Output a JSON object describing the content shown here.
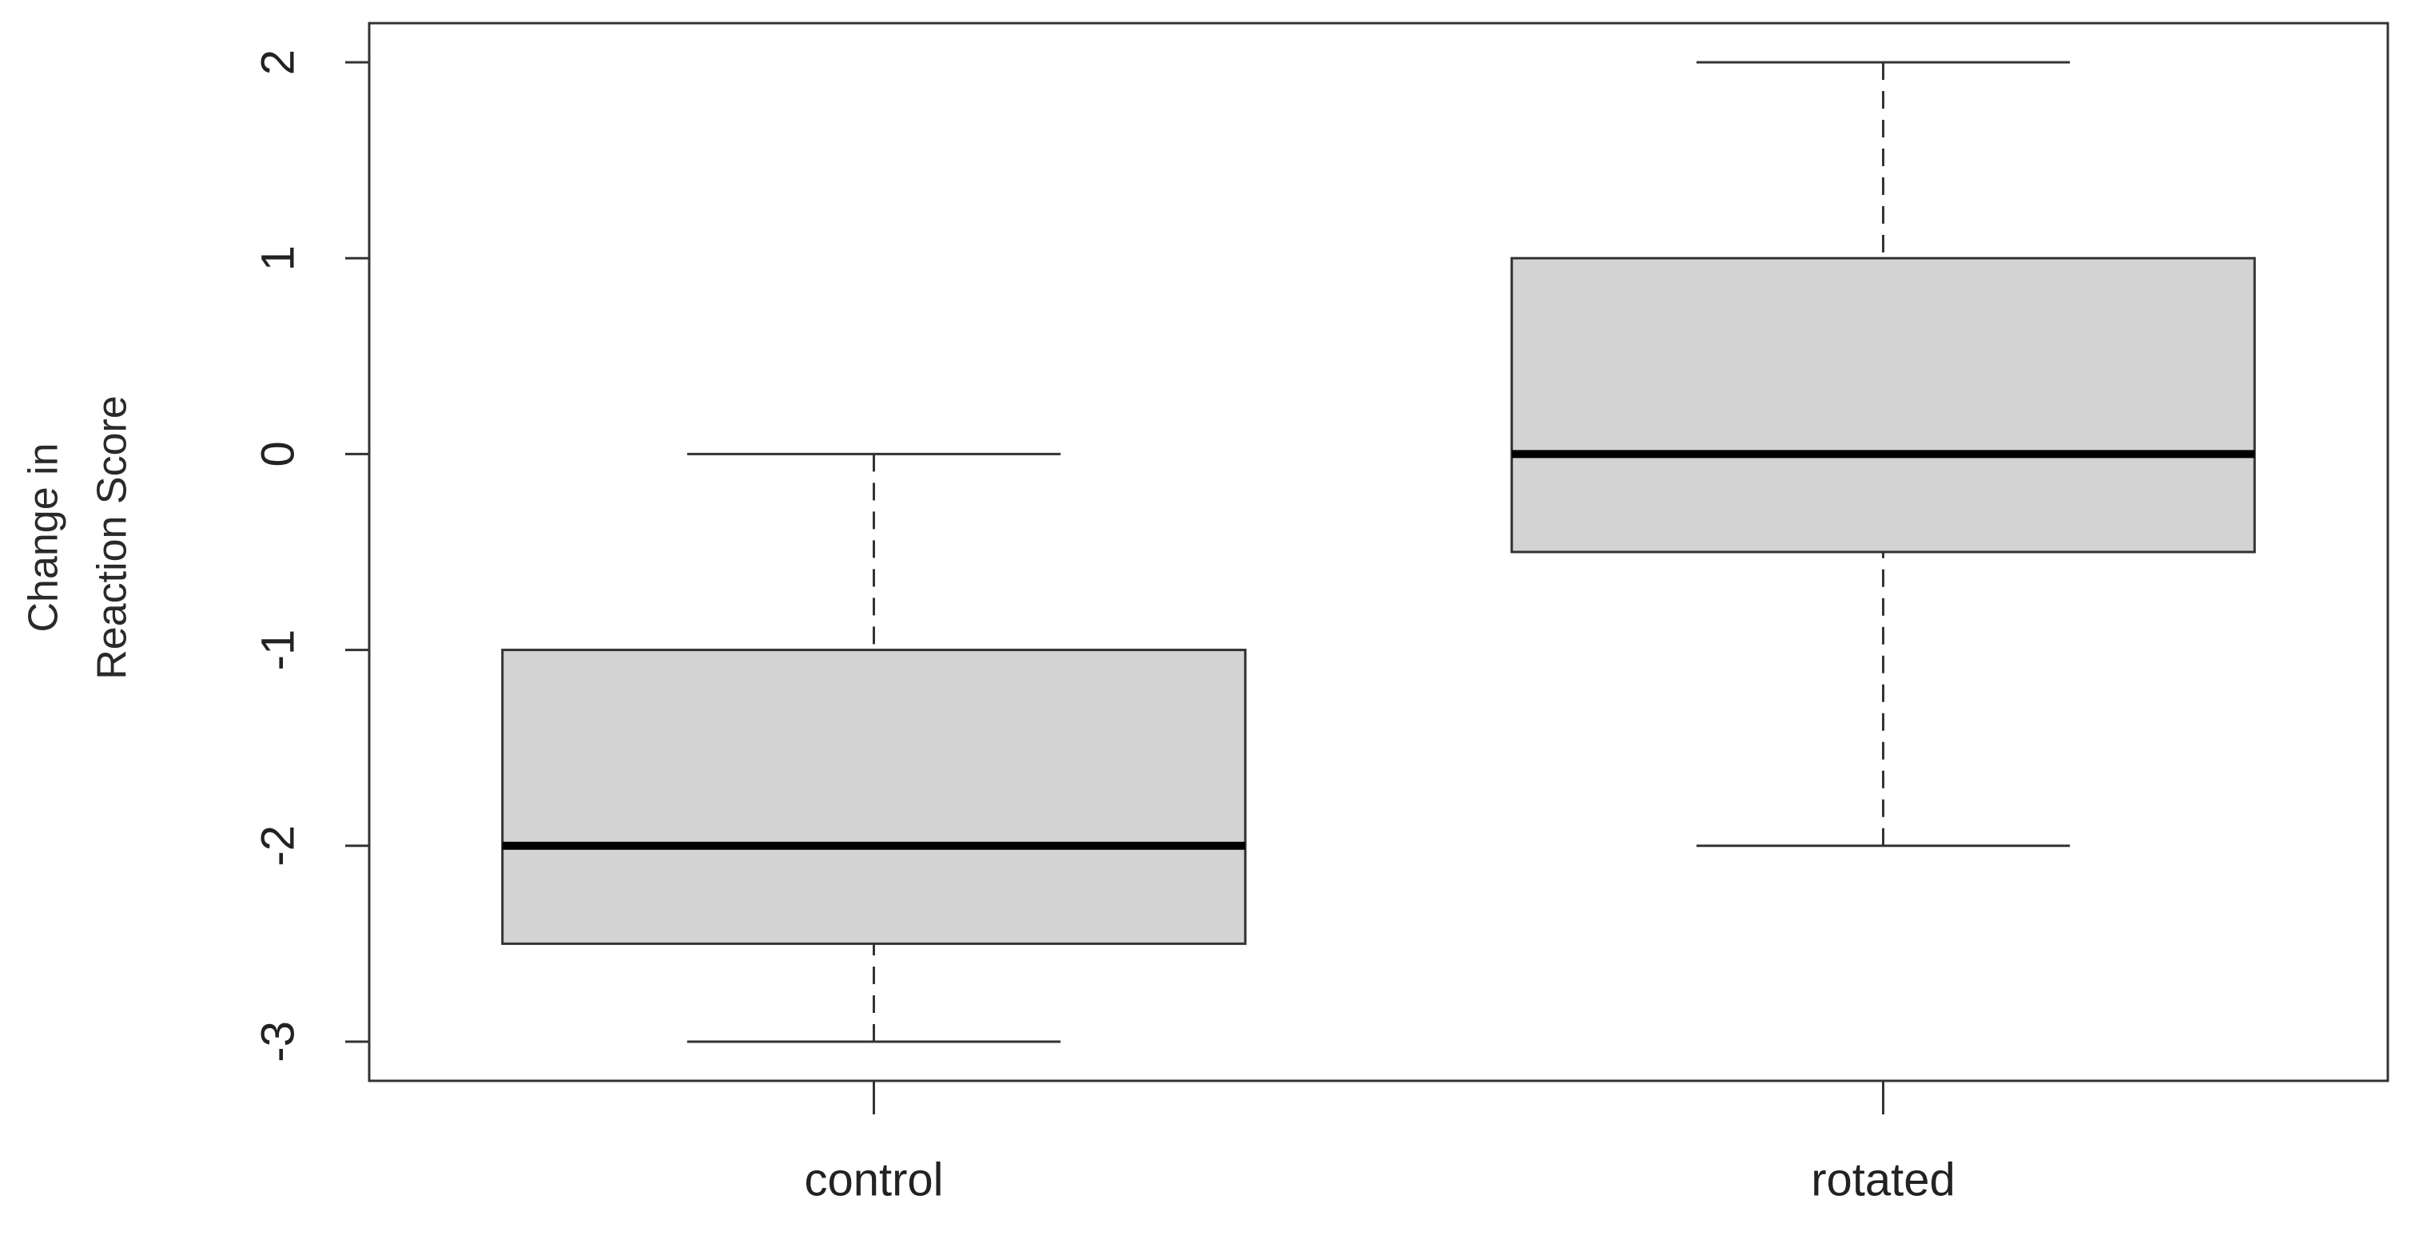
{
  "chart_data": {
    "type": "boxplot",
    "y_label": [
      "Change in",
      "Reaction Score"
    ],
    "categories": [
      "control",
      "rotated"
    ],
    "boxes": [
      {
        "min": -3,
        "q1": -2.5,
        "median": -2,
        "q3": -1,
        "max": 0
      },
      {
        "min": -2,
        "q1": -0.5,
        "median": 0,
        "q3": 1,
        "max": 2
      }
    ],
    "color": "#d3d3d3",
    "ylim": [
      -3.2,
      2.2
    ],
    "yticks": [
      -3,
      -2,
      -1,
      0,
      1,
      2
    ],
    "grid": false
  }
}
